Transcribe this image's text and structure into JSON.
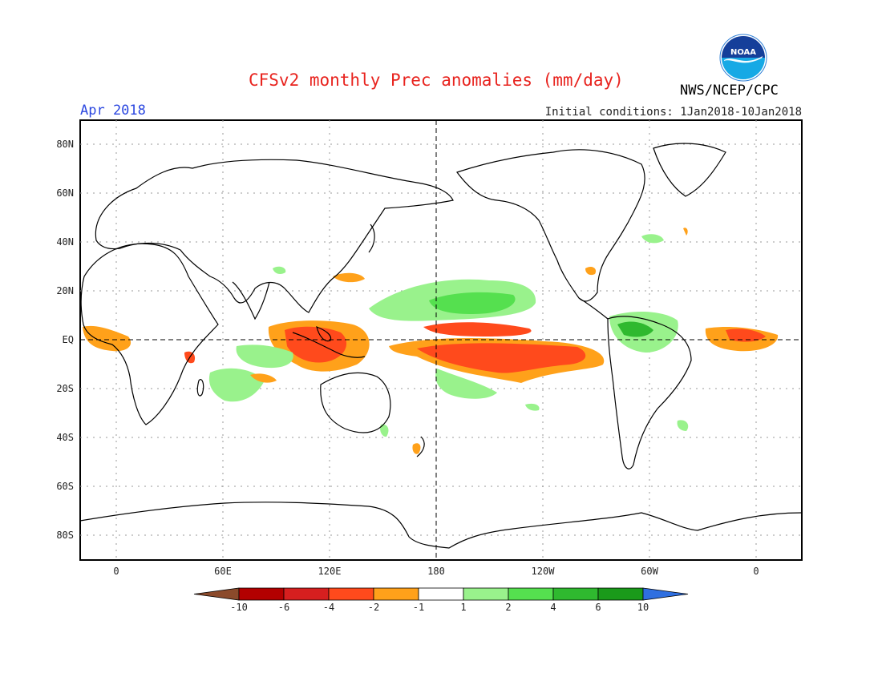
{
  "header": {
    "title": "CFSv2 monthly Prec anomalies (mm/day)",
    "org": "NWS/NCEP/CPC",
    "month": "Apr 2018",
    "initial_conditions": "Initial conditions: 1Jan2018-10Jan2018",
    "logo_text": "NOAA"
  },
  "axes": {
    "lat_labels": [
      "80N",
      "60N",
      "40N",
      "20N",
      "EQ",
      "20S",
      "40S",
      "60S",
      "80S"
    ],
    "lon_labels": [
      "0",
      "60E",
      "120E",
      "180",
      "120W",
      "60W",
      "0"
    ]
  },
  "colorbar": {
    "tick_labels": [
      "-10",
      "-6",
      "-4",
      "-2",
      "-1",
      "1",
      "2",
      "4",
      "6",
      "10"
    ],
    "colors": [
      "#8b4a2b",
      "#b30000",
      "#d61f1f",
      "#ff4a1c",
      "#ffa11a",
      "#ffffff",
      "#99f28c",
      "#55e04f",
      "#2fb92f",
      "#1a9a1a",
      "#2f6fe0"
    ]
  },
  "colors": {
    "title": "#e8231e",
    "month": "#2b47e0",
    "land_outline": "#000000",
    "grid": "#888888"
  }
}
